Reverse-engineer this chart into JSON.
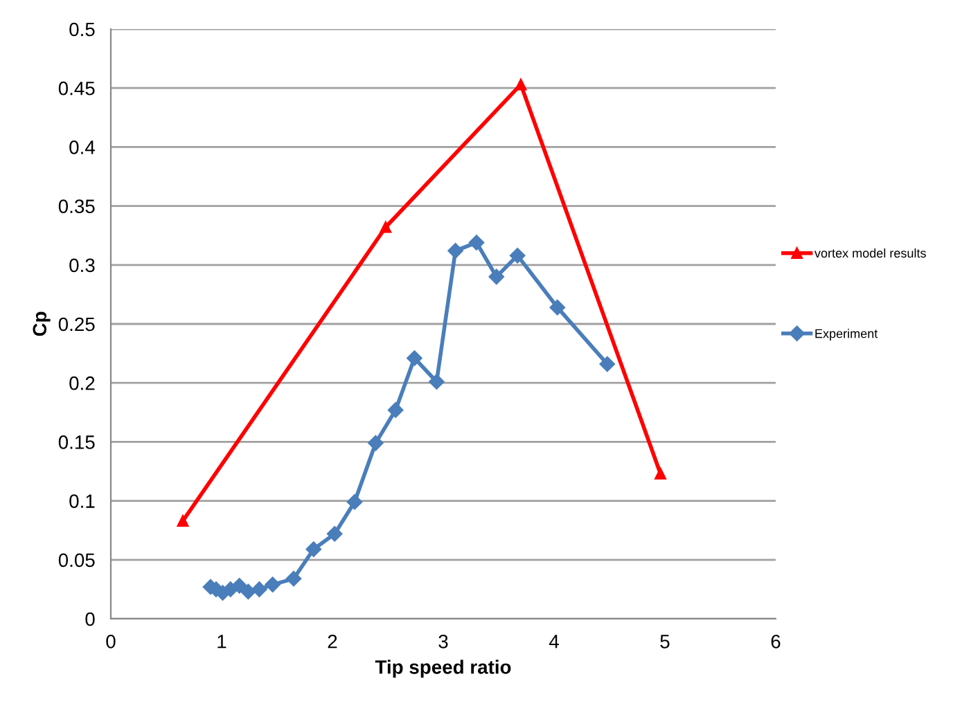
{
  "chart_data": {
    "type": "line",
    "xlabel": "Tip speed ratio",
    "ylabel": "Cp",
    "xlim": [
      0,
      6
    ],
    "xticks": [
      0,
      1,
      2,
      3,
      4,
      5,
      6
    ],
    "ylim": [
      0,
      0.5
    ],
    "yticks": [
      0,
      0.05,
      0.1,
      0.15,
      0.2,
      0.25,
      0.3,
      0.35,
      0.4,
      0.45,
      0.5
    ],
    "grid": "y",
    "legend": "right",
    "series": [
      {
        "name": "vortex model results",
        "color": "#ff0000",
        "marker": "triangle",
        "x": [
          0.65,
          2.48,
          3.7,
          4.96
        ],
        "values": [
          0.083,
          0.332,
          0.453,
          0.123
        ]
      },
      {
        "name": "Experiment",
        "color": "#4a7ebb",
        "marker": "diamond",
        "x": [
          0.9,
          0.95,
          1.01,
          1.08,
          1.16,
          1.24,
          1.34,
          1.46,
          1.65,
          1.83,
          2.02,
          2.2,
          2.39,
          2.57,
          2.74,
          2.94,
          3.11,
          3.3,
          3.48,
          3.67,
          4.03,
          4.48
        ],
        "values": [
          0.027,
          0.025,
          0.022,
          0.025,
          0.028,
          0.023,
          0.025,
          0.029,
          0.034,
          0.059,
          0.072,
          0.099,
          0.149,
          0.177,
          0.221,
          0.201,
          0.312,
          0.319,
          0.29,
          0.308,
          0.264,
          0.216
        ]
      }
    ]
  }
}
